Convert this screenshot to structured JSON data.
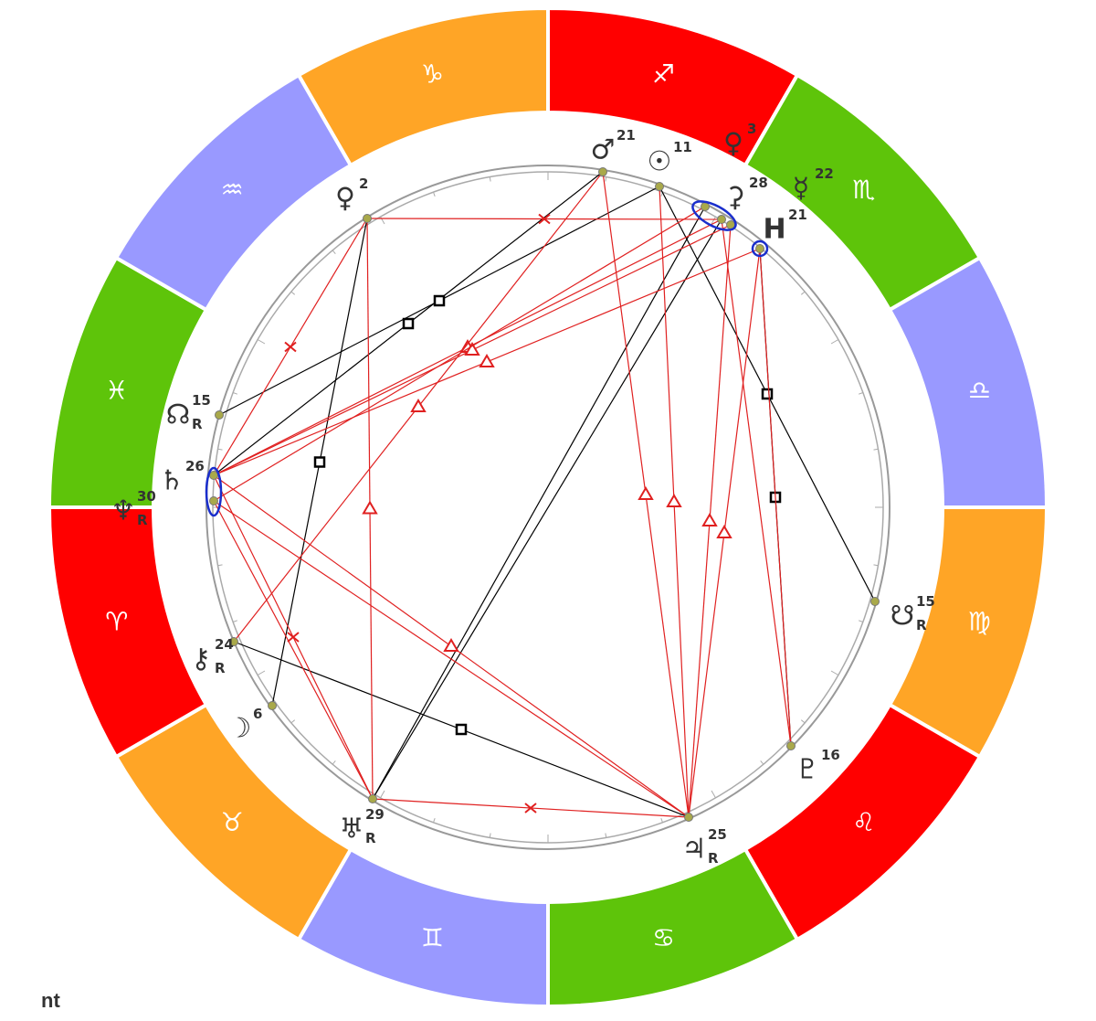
{
  "zodiac": {
    "signs": [
      "♐",
      "♏",
      "♎",
      "♍",
      "♌",
      "♋",
      "♊",
      "♉",
      "♈",
      "♓",
      "♒",
      "♑"
    ]
  },
  "planets": [
    {
      "glyph": "♂",
      "degree": 21
    },
    {
      "glyph": "☉",
      "degree": 11
    },
    {
      "glyph": "♀",
      "degree": 3
    },
    {
      "glyph": "⚳",
      "degree": 28
    },
    {
      "glyph": "☿",
      "degree": 22
    },
    {
      "glyph": "H",
      "degree": 21
    },
    {
      "glyph": "☋",
      "degree": 15,
      "retrograde": "R"
    },
    {
      "glyph": "♇",
      "degree": 16
    },
    {
      "glyph": "♃",
      "degree": 25,
      "retrograde": "R"
    },
    {
      "glyph": "♅",
      "degree": 29,
      "retrograde": "R"
    },
    {
      "glyph": "☽",
      "degree": 6
    },
    {
      "glyph": "⚷",
      "degree": 24,
      "retrograde": "R"
    },
    {
      "glyph": "♆",
      "degree": 30,
      "retrograde": "R"
    },
    {
      "glyph": "♄",
      "degree": 26
    },
    {
      "glyph": "☊",
      "degree": 15,
      "retrograde": "R"
    },
    {
      "glyph": "♀",
      "degree": 2
    }
  ],
  "footer": "nt"
}
